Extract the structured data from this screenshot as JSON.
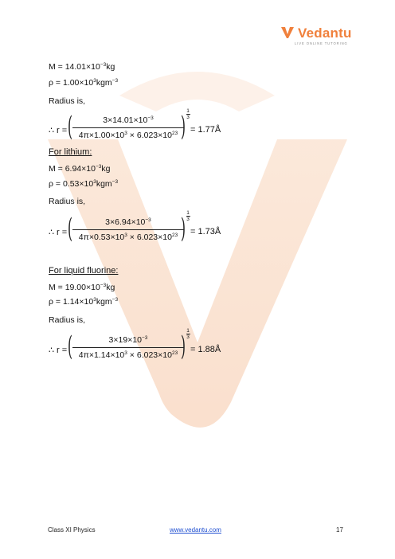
{
  "brand": {
    "name": "Vedantu",
    "tagline": "LIVE ONLINE TUTORING"
  },
  "brand_colors": {
    "accent": "#f0803c",
    "link": "#1f4fd1"
  },
  "sections": {
    "first": {
      "mass": "M = 14.01×10",
      "mass_exp": "−3",
      "mass_unit": "kg",
      "density": "ρ = 1.00×10",
      "density_exp": "3",
      "density_unit": "kgm",
      "density_unit_exp": "−3",
      "radius_label": "Radius is,",
      "therefore": "∴ r =",
      "numerator": "3×14.01×10",
      "numerator_exp": "−3",
      "den_a": "4π×1.00×10",
      "den_a_exp": "3",
      "den_b": " × 6.023×10",
      "den_b_exp": "23",
      "power_num": "1",
      "power_den": "3",
      "result": "= 1.77Å"
    },
    "lithium": {
      "heading": "For lithium:",
      "mass": "M = 6.94×10",
      "mass_exp": "−3",
      "mass_unit": "kg",
      "density": "ρ = 0.53×10",
      "density_exp": "3",
      "density_unit": "kgm",
      "density_unit_exp": "−3",
      "radius_label": "Radius is,",
      "therefore": "∴ r =",
      "numerator": "3×6.94×10",
      "numerator_exp": "−3",
      "den_a": "4π×0.53×10",
      "den_a_exp": "3",
      "den_b": " × 6.023×10",
      "den_b_exp": "23",
      "power_num": "1",
      "power_den": "3",
      "result": "= 1.73Å"
    },
    "fluorine": {
      "heading": "For liquid fluorine:",
      "mass": "M = 19.00×10",
      "mass_exp": "−3",
      "mass_unit": "kg",
      "density": "ρ = 1.14×10",
      "density_exp": "3",
      "density_unit": "kgm",
      "density_unit_exp": "−3",
      "radius_label": "Radius is,",
      "therefore": "∴ r =",
      "numerator": "3×19×10",
      "numerator_exp": "−3",
      "den_a": "4π×1.14×10",
      "den_a_exp": "3",
      "den_b": " × 6.023×10",
      "den_b_exp": "23",
      "power_num": "1",
      "power_den": "3",
      "result": "= 1.88Å"
    }
  },
  "footer": {
    "left": "Class XI Physics",
    "center": "www.vedantu.com",
    "right": "17"
  }
}
